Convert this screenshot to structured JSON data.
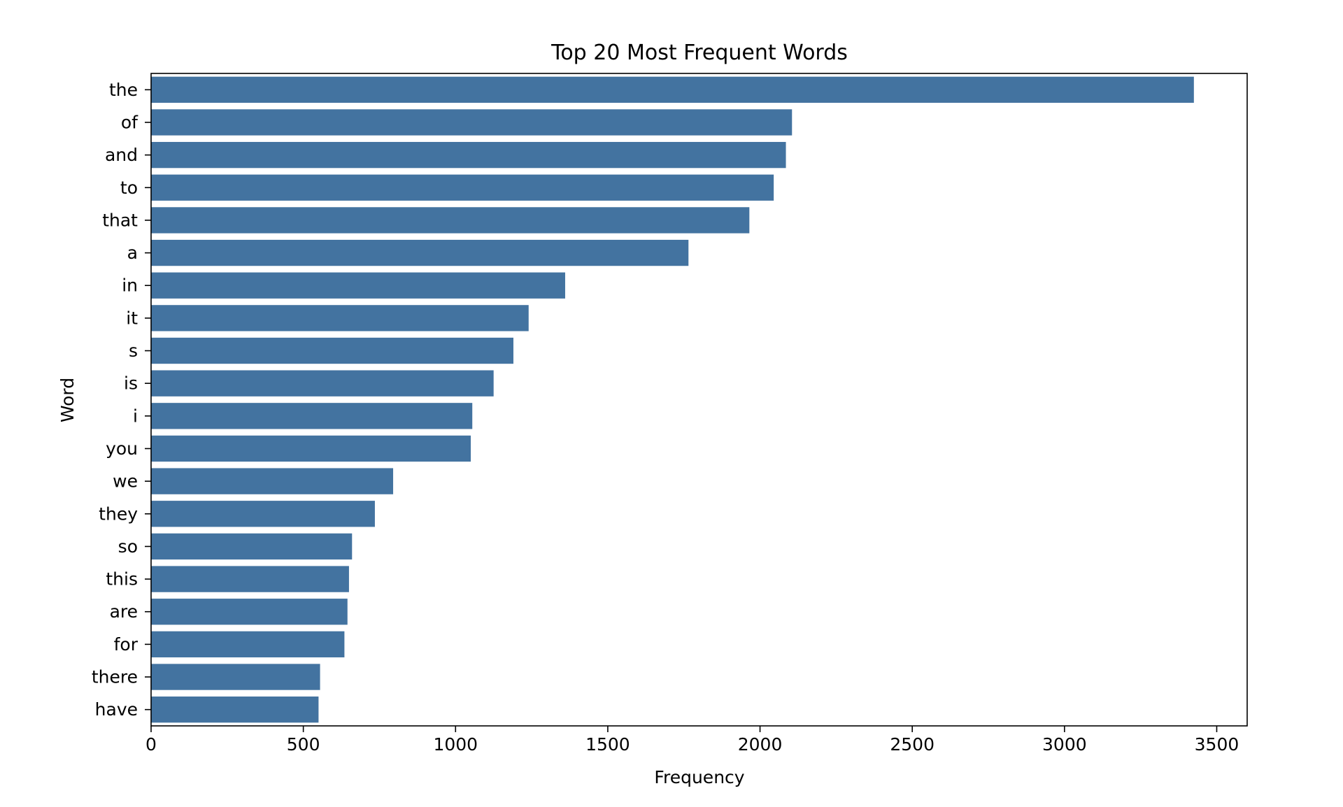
{
  "chart_data": {
    "type": "bar",
    "orientation": "horizontal",
    "title": "Top 20 Most Frequent Words",
    "xlabel": "Frequency",
    "ylabel": "Word",
    "categories": [
      "the",
      "of",
      "and",
      "to",
      "that",
      "a",
      "in",
      "it",
      "s",
      "is",
      "i",
      "you",
      "we",
      "they",
      "so",
      "this",
      "are",
      "for",
      "there",
      "have"
    ],
    "values": [
      3425,
      2105,
      2085,
      2045,
      1965,
      1765,
      1360,
      1240,
      1190,
      1125,
      1055,
      1050,
      795,
      735,
      660,
      650,
      645,
      635,
      555,
      550
    ],
    "xlim": [
      0,
      3600
    ],
    "xticks": [
      0,
      500,
      1000,
      1500,
      2000,
      2500,
      3000,
      3500
    ],
    "grid": false,
    "bar_color": "#4373a0"
  }
}
